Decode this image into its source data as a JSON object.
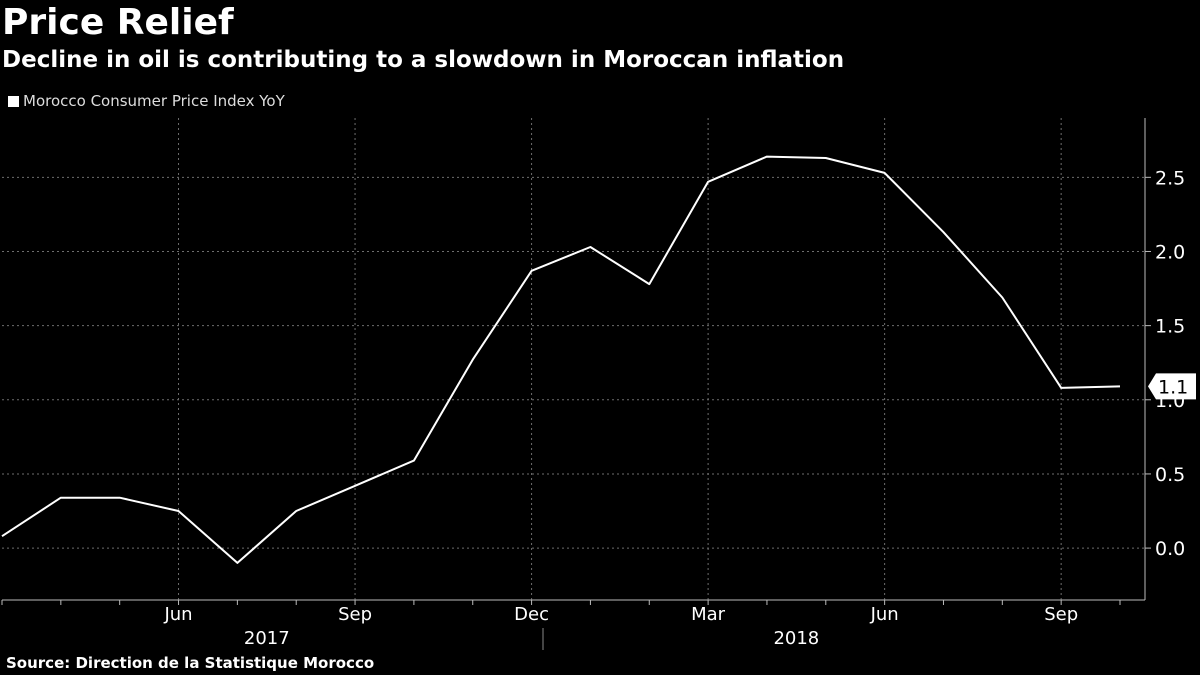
{
  "header": {
    "title": "Price Relief",
    "subtitle": "Decline in oil is contributing to a slowdown in Moroccan inflation"
  },
  "legend": {
    "label": "Morocco Consumer Price Index YoY"
  },
  "source": "Source: Direction de la Statistique Morocco",
  "colors": {
    "background": "#000000",
    "line": "#ffffff",
    "grid": "#6e6e6e",
    "text": "#ffffff"
  },
  "chart_data": {
    "type": "line",
    "title": "Price Relief",
    "subtitle": "Decline in oil is contributing to a slowdown in Moroccan inflation",
    "xlabel": "",
    "ylabel": "",
    "ylim": [
      -0.35,
      2.9
    ],
    "y_ticks": [
      0.0,
      0.5,
      1.0,
      1.5,
      2.0,
      2.5
    ],
    "y_tick_labels": [
      "0.0",
      "0.5",
      "1.0",
      "1.5",
      "2.0",
      "2.5"
    ],
    "x_ticks": [
      {
        "label": "Jun",
        "index": 3
      },
      {
        "label": "Sep",
        "index": 6
      },
      {
        "label": "Dec",
        "index": 9
      },
      {
        "label": "Mar",
        "index": 12
      },
      {
        "label": "Jun",
        "index": 15
      },
      {
        "label": "Sep",
        "index": 18
      }
    ],
    "year_labels": [
      {
        "label": "2017",
        "index": 4.5
      },
      {
        "label": "2018",
        "index": 13.5
      }
    ],
    "grid": true,
    "legend_position": "top-left",
    "series": [
      {
        "name": "Morocco Consumer Price Index YoY",
        "x": [
          "2017-03",
          "2017-04",
          "2017-05",
          "2017-06",
          "2017-07",
          "2017-08",
          "2017-09",
          "2017-10",
          "2017-11",
          "2017-12",
          "2018-01",
          "2018-02",
          "2018-03",
          "2018-04",
          "2018-05",
          "2018-06",
          "2018-07",
          "2018-08",
          "2018-09",
          "2018-10"
        ],
        "values": [
          0.08,
          0.34,
          0.34,
          0.25,
          -0.1,
          0.25,
          0.42,
          0.59,
          1.27,
          1.87,
          2.03,
          1.78,
          2.47,
          2.64,
          2.63,
          2.53,
          2.13,
          1.69,
          1.08,
          1.09
        ]
      }
    ],
    "last_value_label": "1.1"
  }
}
